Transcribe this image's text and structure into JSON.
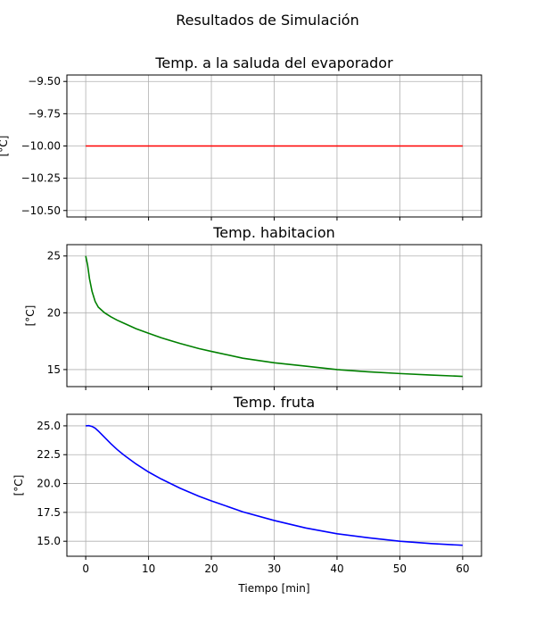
{
  "figure": {
    "suptitle": "Resultados de Simulación"
  },
  "colors": {
    "series1": "#ff0000",
    "series2": "#008000",
    "series3": "#0000ff",
    "grid": "#b0b0b0"
  },
  "chart_data": [
    {
      "type": "line",
      "title": "Temp. a la saluda del evaporador",
      "ylabel": "[°C]",
      "xlabel": "",
      "xlim": [
        -3,
        63
      ],
      "ylim": [
        -10.55,
        -9.45
      ],
      "xticks": [
        0,
        10,
        20,
        30,
        40,
        50,
        60
      ],
      "xtick_labels": [
        "",
        "",
        "",
        "",
        "",
        "",
        ""
      ],
      "yticks": [
        -9.5,
        -9.75,
        -10.0,
        -10.25,
        -10.5
      ],
      "ytick_labels": [
        "−9.50",
        "−9.75",
        "−10.00",
        "−10.25",
        "−10.50"
      ],
      "grid": true,
      "series": [
        {
          "color": "#ff0000",
          "x": [
            0,
            60
          ],
          "y": [
            -10.0,
            -10.0
          ]
        }
      ]
    },
    {
      "type": "line",
      "title": "Temp. habitacion",
      "ylabel": "[°C]",
      "xlabel": "",
      "xlim": [
        -3,
        63
      ],
      "ylim": [
        13.5,
        26.0
      ],
      "xticks": [
        0,
        10,
        20,
        30,
        40,
        50,
        60
      ],
      "xtick_labels": [
        "",
        "",
        "",
        "",
        "",
        "",
        ""
      ],
      "yticks": [
        15,
        20,
        25
      ],
      "ytick_labels": [
        "15",
        "20",
        "25"
      ],
      "grid": true,
      "series": [
        {
          "color": "#008000",
          "x": [
            0,
            0.3,
            0.6,
            1,
            1.5,
            2,
            3,
            4,
            5,
            6,
            8,
            10,
            12,
            15,
            18,
            20,
            25,
            30,
            35,
            40,
            45,
            50,
            55,
            60
          ],
          "y": [
            25.0,
            24.2,
            23.0,
            21.9,
            21.0,
            20.5,
            20.0,
            19.65,
            19.35,
            19.1,
            18.6,
            18.2,
            17.8,
            17.3,
            16.85,
            16.6,
            16.0,
            15.6,
            15.3,
            15.0,
            14.8,
            14.65,
            14.52,
            14.4
          ]
        }
      ]
    },
    {
      "type": "line",
      "title": "Temp. fruta",
      "ylabel": "[°C]",
      "xlabel": "Tiempo [min]",
      "xlim": [
        -3,
        63
      ],
      "ylim": [
        13.7,
        26.0
      ],
      "xticks": [
        0,
        10,
        20,
        30,
        40,
        50,
        60
      ],
      "xtick_labels": [
        "0",
        "10",
        "20",
        "30",
        "40",
        "50",
        "60"
      ],
      "yticks": [
        15.0,
        17.5,
        20.0,
        22.5,
        25.0
      ],
      "ytick_labels": [
        "15.0",
        "17.5",
        "20.0",
        "22.5",
        "25.0"
      ],
      "grid": true,
      "series": [
        {
          "color": "#0000ff",
          "x": [
            0,
            0.5,
            1,
            1.5,
            2,
            3,
            4,
            5,
            6,
            8,
            10,
            12,
            15,
            18,
            20,
            25,
            30,
            35,
            40,
            45,
            50,
            55,
            60
          ],
          "y": [
            25.0,
            25.02,
            24.95,
            24.8,
            24.55,
            24.0,
            23.45,
            22.95,
            22.5,
            21.7,
            21.0,
            20.4,
            19.6,
            18.9,
            18.5,
            17.55,
            16.8,
            16.15,
            15.65,
            15.3,
            15.0,
            14.8,
            14.65
          ]
        }
      ]
    }
  ]
}
